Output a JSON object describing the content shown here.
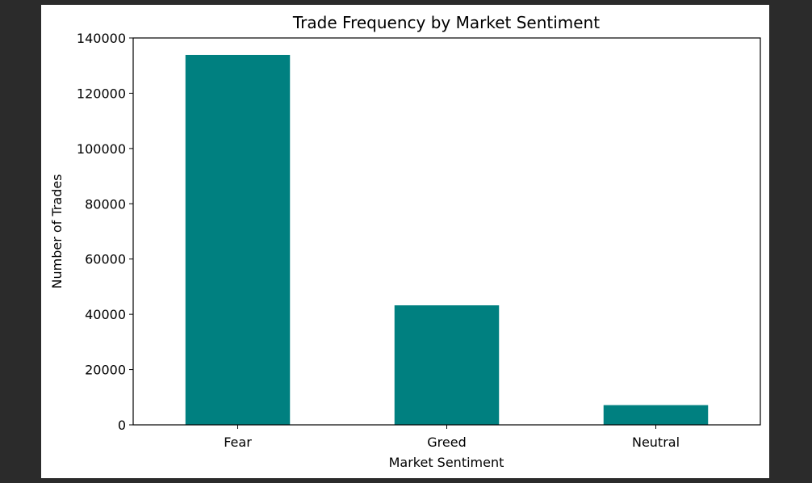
{
  "chart_data": {
    "type": "bar",
    "title": "Trade Frequency by Market Sentiment",
    "xlabel": "Market Sentiment",
    "ylabel": "Number of Trades",
    "categories": [
      "Fear",
      "Greed",
      "Neutral"
    ],
    "values": [
      133871,
      43251,
      7141
    ],
    "ylim": [
      0,
      140000
    ],
    "yticks": [
      0,
      20000,
      40000,
      60000,
      80000,
      100000,
      120000,
      140000
    ],
    "bar_color": "#008080",
    "grid": false,
    "legend": "none"
  }
}
